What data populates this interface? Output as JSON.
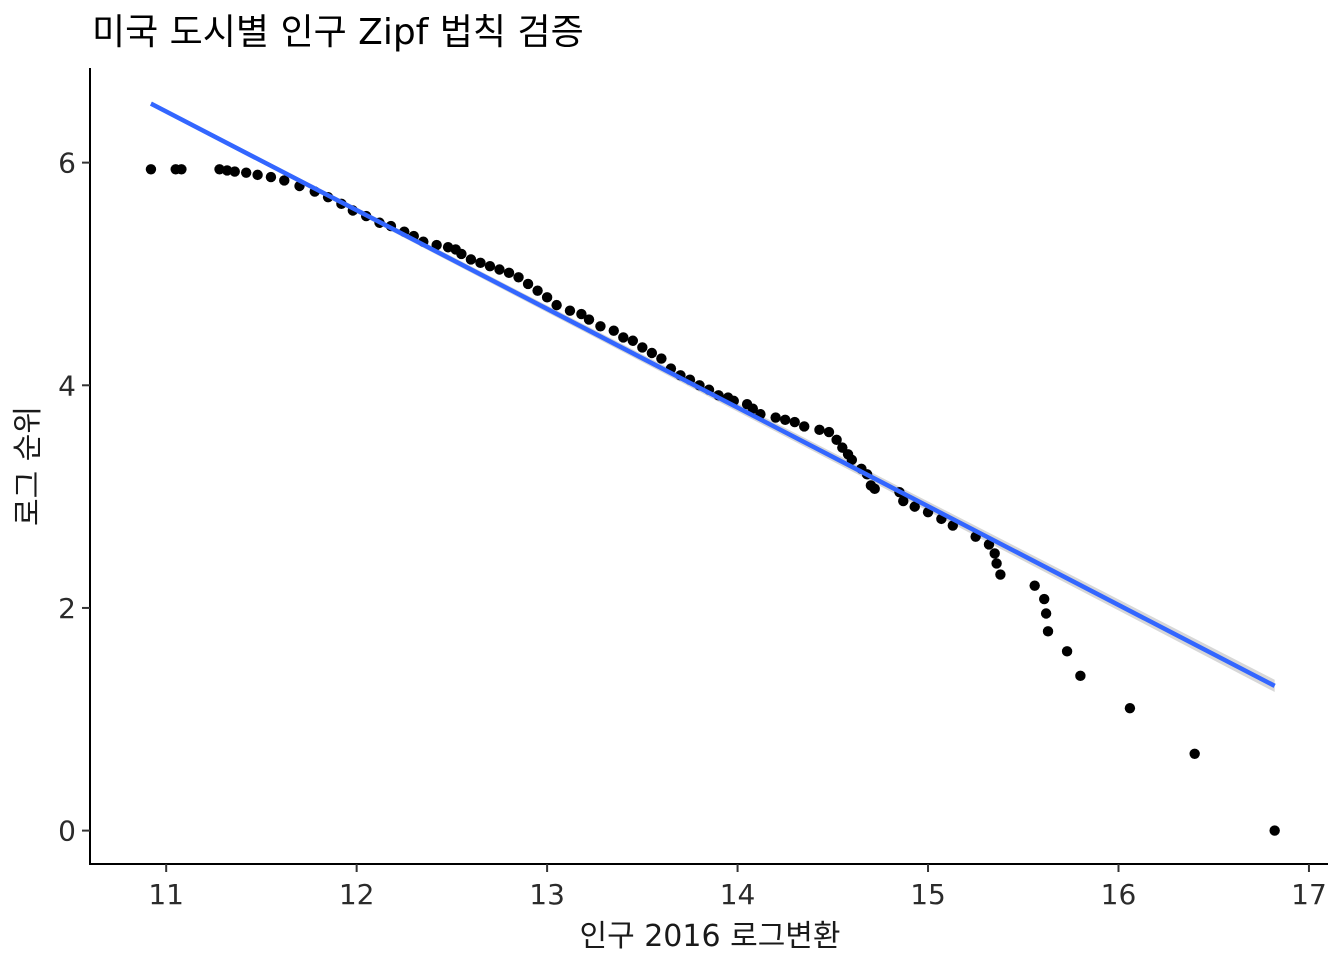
{
  "chart_data": {
    "type": "scatter",
    "title": "미국 도시별 인구 Zipf 법칙 검증",
    "xlabel": "인구 2016 로그변환",
    "ylabel": "로그 순위",
    "xlim": [
      10.6,
      17.1
    ],
    "ylim": [
      -0.3,
      6.85
    ],
    "x_ticks": [
      11,
      12,
      13,
      14,
      15,
      16,
      17
    ],
    "x_tick_labels": [
      "11",
      "12",
      "13",
      "14",
      "15",
      "16",
      "17"
    ],
    "y_ticks": [
      0,
      2,
      4,
      6
    ],
    "y_tick_labels": [
      "0",
      "2",
      "4",
      "6"
    ],
    "grid": false,
    "legend": "none",
    "colors": {
      "points": "#000000",
      "fit_line": "#3366ff",
      "confidence_band": "#bdbdbd"
    },
    "fit_line": {
      "method": "linear",
      "x": [
        10.92,
        16.82
      ],
      "y": [
        6.53,
        1.3
      ],
      "ci_halfwidth_start": 0.018,
      "ci_halfwidth_end": 0.055
    },
    "points": [
      [
        10.92,
        5.94
      ],
      [
        11.05,
        5.94
      ],
      [
        11.08,
        5.94
      ],
      [
        11.28,
        5.94
      ],
      [
        11.32,
        5.93
      ],
      [
        11.36,
        5.92
      ],
      [
        11.42,
        5.91
      ],
      [
        11.48,
        5.89
      ],
      [
        11.55,
        5.87
      ],
      [
        11.62,
        5.84
      ],
      [
        11.7,
        5.79
      ],
      [
        11.78,
        5.74
      ],
      [
        11.85,
        5.69
      ],
      [
        11.92,
        5.63
      ],
      [
        11.98,
        5.57
      ],
      [
        12.05,
        5.52
      ],
      [
        12.12,
        5.46
      ],
      [
        12.18,
        5.43
      ],
      [
        12.25,
        5.38
      ],
      [
        12.3,
        5.34
      ],
      [
        12.35,
        5.29
      ],
      [
        12.42,
        5.26
      ],
      [
        12.48,
        5.24
      ],
      [
        12.52,
        5.22
      ],
      [
        12.55,
        5.18
      ],
      [
        12.6,
        5.13
      ],
      [
        12.65,
        5.1
      ],
      [
        12.7,
        5.07
      ],
      [
        12.75,
        5.04
      ],
      [
        12.8,
        5.01
      ],
      [
        12.85,
        4.97
      ],
      [
        12.9,
        4.91
      ],
      [
        12.95,
        4.85
      ],
      [
        13.0,
        4.79
      ],
      [
        13.05,
        4.72
      ],
      [
        13.12,
        4.67
      ],
      [
        13.18,
        4.64
      ],
      [
        13.22,
        4.59
      ],
      [
        13.28,
        4.53
      ],
      [
        13.35,
        4.49
      ],
      [
        13.4,
        4.43
      ],
      [
        13.45,
        4.4
      ],
      [
        13.5,
        4.34
      ],
      [
        13.55,
        4.29
      ],
      [
        13.6,
        4.24
      ],
      [
        13.65,
        4.15
      ],
      [
        13.7,
        4.09
      ],
      [
        13.75,
        4.05
      ],
      [
        13.8,
        4.0
      ],
      [
        13.85,
        3.96
      ],
      [
        13.9,
        3.91
      ],
      [
        13.95,
        3.89
      ],
      [
        13.98,
        3.86
      ],
      [
        14.05,
        3.83
      ],
      [
        14.08,
        3.79
      ],
      [
        14.12,
        3.74
      ],
      [
        14.2,
        3.71
      ],
      [
        14.25,
        3.69
      ],
      [
        14.3,
        3.67
      ],
      [
        14.35,
        3.63
      ],
      [
        14.43,
        3.6
      ],
      [
        14.48,
        3.58
      ],
      [
        14.52,
        3.51
      ],
      [
        14.55,
        3.44
      ],
      [
        14.58,
        3.38
      ],
      [
        14.6,
        3.33
      ],
      [
        14.65,
        3.25
      ],
      [
        14.68,
        3.2
      ],
      [
        14.7,
        3.1
      ],
      [
        14.72,
        3.07
      ],
      [
        14.85,
        3.04
      ],
      [
        14.87,
        2.96
      ],
      [
        14.93,
        2.91
      ],
      [
        15.0,
        2.86
      ],
      [
        15.07,
        2.8
      ],
      [
        15.13,
        2.74
      ],
      [
        15.25,
        2.64
      ],
      [
        15.32,
        2.57
      ],
      [
        15.35,
        2.49
      ],
      [
        15.36,
        2.4
      ],
      [
        15.38,
        2.3
      ],
      [
        15.56,
        2.2
      ],
      [
        15.61,
        2.08
      ],
      [
        15.62,
        1.95
      ],
      [
        15.63,
        1.79
      ],
      [
        15.73,
        1.61
      ],
      [
        15.8,
        1.39
      ],
      [
        16.06,
        1.1
      ],
      [
        16.4,
        0.69
      ],
      [
        16.82,
        0.0
      ]
    ]
  }
}
